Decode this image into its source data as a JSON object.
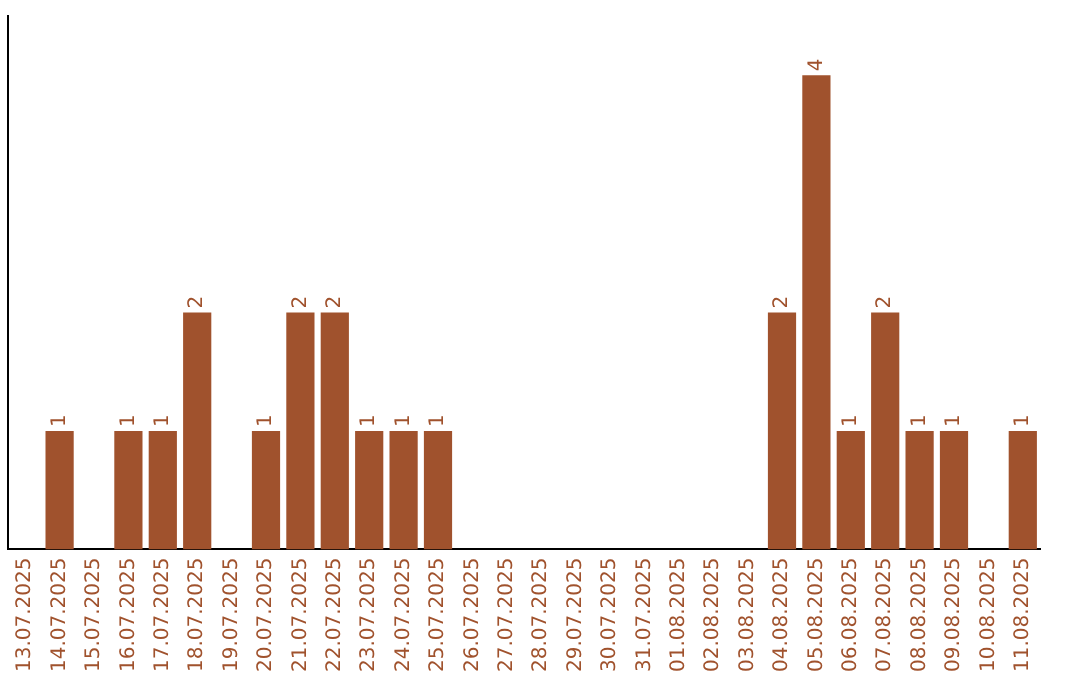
{
  "chart_data": {
    "type": "bar",
    "categories": [
      "13.07.2025",
      "14.07.2025",
      "15.07.2025",
      "16.07.2025",
      "17.07.2025",
      "18.07.2025",
      "19.07.2025",
      "20.07.2025",
      "21.07.2025",
      "22.07.2025",
      "23.07.2025",
      "24.07.2025",
      "25.07.2025",
      "26.07.2025",
      "27.07.2025",
      "28.07.2025",
      "29.07.2025",
      "30.07.2025",
      "31.07.2025",
      "01.08.2025",
      "02.08.2025",
      "03.08.2025",
      "04.08.2025",
      "05.08.2025",
      "06.08.2025",
      "07.08.2025",
      "08.08.2025",
      "09.08.2025",
      "10.08.2025",
      "11.08.2025"
    ],
    "values": [
      0,
      1,
      0,
      1,
      1,
      2,
      0,
      1,
      2,
      2,
      1,
      1,
      1,
      0,
      0,
      0,
      0,
      0,
      0,
      0,
      0,
      0,
      2,
      4,
      1,
      2,
      1,
      1,
      0,
      1
    ],
    "value_labels": [
      null,
      "1",
      null,
      "1",
      "1",
      "2",
      null,
      "1",
      "2",
      "2",
      "1",
      "1",
      "1",
      null,
      null,
      null,
      null,
      null,
      null,
      null,
      null,
      null,
      "2",
      "4",
      "1",
      "2",
      "1",
      "1",
      null,
      "1"
    ],
    "color": "#a0522d",
    "grid": false,
    "legend": false
  }
}
